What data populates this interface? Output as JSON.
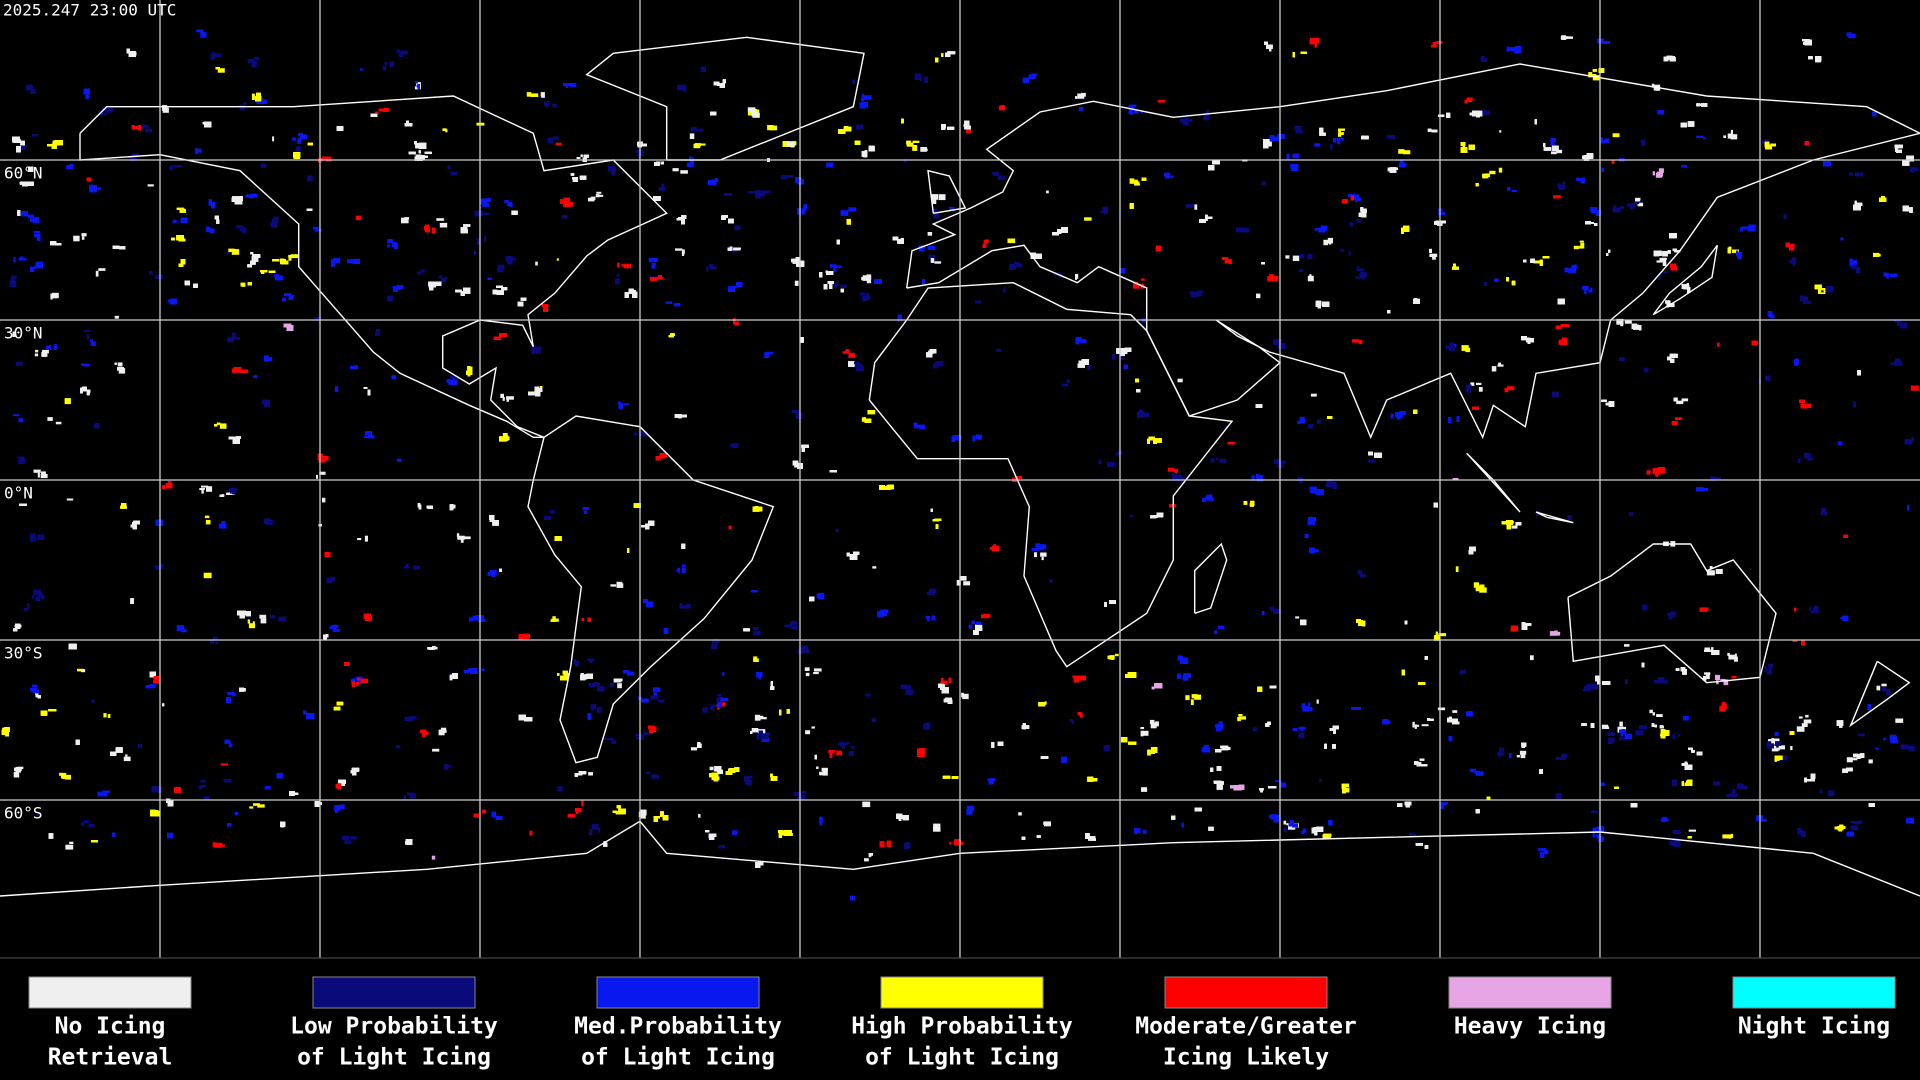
{
  "header": {
    "timestamp": "2025.247 23:00 UTC"
  },
  "map": {
    "latitude_labels": [
      "60°N",
      "30°N",
      "0°N",
      "30°S",
      "60°S"
    ]
  },
  "legend": {
    "items": [
      {
        "label": [
          "No Icing",
          "Retrieval"
        ],
        "color": "#efefef"
      },
      {
        "label": [
          "Low Probability",
          "of Light Icing"
        ],
        "color": "#0a0a7a"
      },
      {
        "label": [
          "Med.Probability",
          "of Light Icing"
        ],
        "color": "#0a18f0"
      },
      {
        "label": [
          "High Probability",
          "of Light Icing"
        ],
        "color": "#ffff00"
      },
      {
        "label": [
          "Moderate/Greater",
          "Icing Likely"
        ],
        "color": "#ff0000"
      },
      {
        "label": [
          "Heavy Icing"
        ],
        "color": "#e6a6e6"
      },
      {
        "label": [
          "Night Icing"
        ],
        "color": "#00ffff"
      }
    ]
  }
}
